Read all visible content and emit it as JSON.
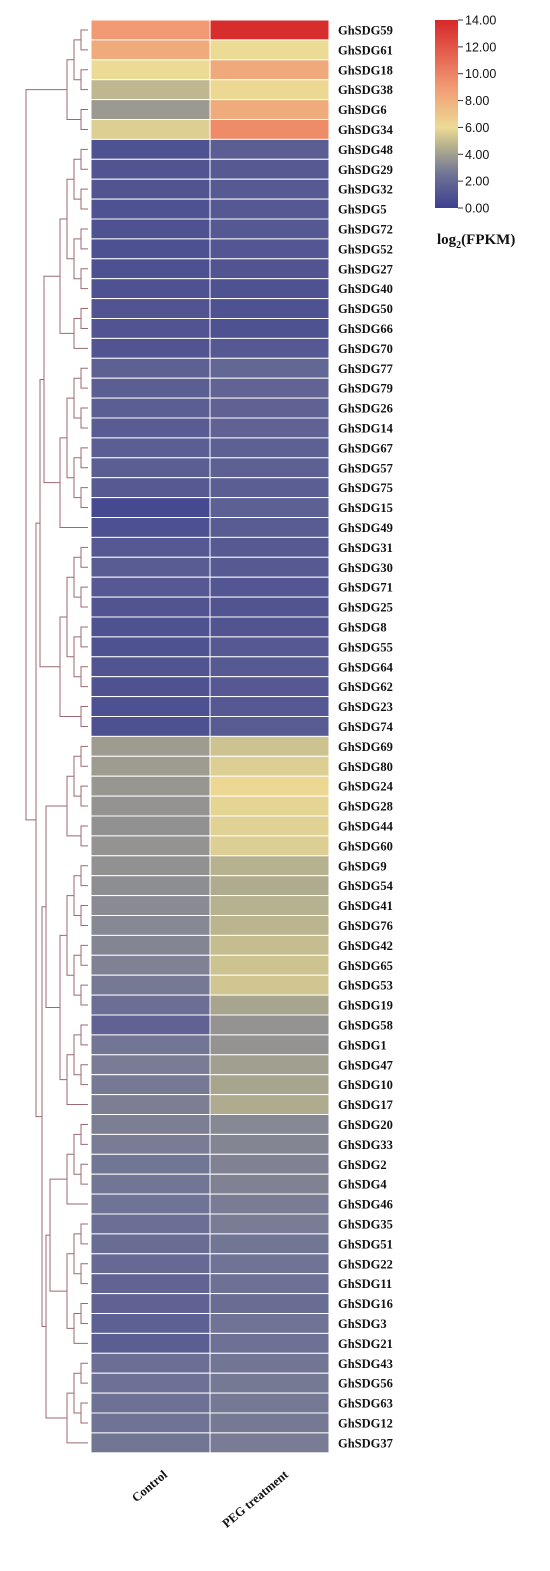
{
  "chart_data": {
    "type": "heatmap",
    "columns": [
      "Control",
      "PEG treatment"
    ],
    "rows": [
      "GhSDG59",
      "GhSDG61",
      "GhSDG18",
      "GhSDG38",
      "GhSDG6",
      "GhSDG34",
      "GhSDG48",
      "GhSDG29",
      "GhSDG32",
      "GhSDG5",
      "GhSDG72",
      "GhSDG52",
      "GhSDG27",
      "GhSDG40",
      "GhSDG50",
      "GhSDG66",
      "GhSDG70",
      "GhSDG77",
      "GhSDG79",
      "GhSDG26",
      "GhSDG14",
      "GhSDG67",
      "GhSDG57",
      "GhSDG75",
      "GhSDG15",
      "GhSDG49",
      "GhSDG31",
      "GhSDG30",
      "GhSDG71",
      "GhSDG25",
      "GhSDG8",
      "GhSDG55",
      "GhSDG64",
      "GhSDG62",
      "GhSDG23",
      "GhSDG74",
      "GhSDG69",
      "GhSDG80",
      "GhSDG24",
      "GhSDG28",
      "GhSDG44",
      "GhSDG60",
      "GhSDG9",
      "GhSDG54",
      "GhSDG41",
      "GhSDG76",
      "GhSDG42",
      "GhSDG65",
      "GhSDG53",
      "GhSDG19",
      "GhSDG58",
      "GhSDG1",
      "GhSDG47",
      "GhSDG10",
      "GhSDG17",
      "GhSDG20",
      "GhSDG33",
      "GhSDG2",
      "GhSDG4",
      "GhSDG46",
      "GhSDG35",
      "GhSDG51",
      "GhSDG22",
      "GhSDG11",
      "GhSDG16",
      "GhSDG3",
      "GhSDG21",
      "GhSDG43",
      "GhSDG56",
      "GhSDG63",
      "GhSDG12",
      "GhSDG37"
    ],
    "values": [
      [
        9.0,
        13.8
      ],
      [
        8.2,
        6.0
      ],
      [
        6.0,
        8.3
      ],
      [
        4.8,
        6.2
      ],
      [
        3.8,
        8.2
      ],
      [
        5.6,
        9.6
      ],
      [
        0.9,
        1.5
      ],
      [
        1.0,
        1.3
      ],
      [
        1.0,
        1.3
      ],
      [
        0.9,
        1.2
      ],
      [
        0.9,
        1.2
      ],
      [
        0.8,
        1.1
      ],
      [
        0.8,
        1.0
      ],
      [
        0.9,
        0.9
      ],
      [
        1.0,
        0.9
      ],
      [
        1.0,
        0.9
      ],
      [
        1.0,
        1.2
      ],
      [
        1.6,
        1.9
      ],
      [
        1.5,
        1.8
      ],
      [
        1.5,
        1.7
      ],
      [
        1.4,
        1.7
      ],
      [
        1.5,
        1.6
      ],
      [
        1.5,
        1.6
      ],
      [
        1.3,
        1.5
      ],
      [
        0.5,
        1.6
      ],
      [
        0.8,
        1.4
      ],
      [
        1.2,
        1.3
      ],
      [
        1.4,
        1.3
      ],
      [
        1.2,
        1.1
      ],
      [
        1.0,
        1.0
      ],
      [
        0.9,
        1.0
      ],
      [
        0.9,
        1.2
      ],
      [
        1.0,
        1.3
      ],
      [
        0.9,
        1.2
      ],
      [
        0.8,
        1.2
      ],
      [
        0.8,
        1.4
      ],
      [
        3.9,
        5.2
      ],
      [
        3.9,
        5.6
      ],
      [
        3.7,
        6.2
      ],
      [
        3.6,
        5.8
      ],
      [
        3.5,
        5.7
      ],
      [
        3.6,
        5.6
      ],
      [
        3.5,
        4.6
      ],
      [
        3.4,
        4.4
      ],
      [
        3.3,
        4.6
      ],
      [
        3.2,
        4.7
      ],
      [
        3.1,
        5.0
      ],
      [
        3.0,
        5.2
      ],
      [
        2.7,
        5.3
      ],
      [
        2.3,
        4.2
      ],
      [
        1.7,
        3.6
      ],
      [
        2.6,
        3.6
      ],
      [
        2.8,
        4.0
      ],
      [
        2.7,
        4.2
      ],
      [
        2.9,
        4.4
      ],
      [
        2.9,
        3.2
      ],
      [
        2.8,
        3.1
      ],
      [
        2.6,
        3.0
      ],
      [
        2.6,
        3.0
      ],
      [
        2.5,
        2.8
      ],
      [
        2.3,
        2.8
      ],
      [
        2.2,
        2.6
      ],
      [
        2.0,
        2.5
      ],
      [
        1.8,
        2.4
      ],
      [
        1.7,
        2.2
      ],
      [
        1.6,
        2.5
      ],
      [
        1.5,
        2.4
      ],
      [
        2.3,
        2.6
      ],
      [
        2.4,
        2.7
      ],
      [
        2.4,
        2.7
      ],
      [
        2.5,
        2.7
      ],
      [
        2.6,
        2.8
      ]
    ],
    "colorbar": {
      "ticks": [
        "14.00",
        "12.00",
        "10.00",
        "8.00",
        "6.00",
        "4.00",
        "2.00",
        "0.00"
      ],
      "min": 0,
      "max": 14,
      "stops": [
        {
          "value": 0,
          "color": "#3d3f8f"
        },
        {
          "value": 2.5,
          "color": "#6f7395"
        },
        {
          "value": 4.5,
          "color": "#b2ae8e"
        },
        {
          "value": 6,
          "color": "#ecdb95"
        },
        {
          "value": 9,
          "color": "#f19a73"
        },
        {
          "value": 14,
          "color": "#d7282a"
        }
      ],
      "label": "log",
      "label_sub": "2",
      "label_rest": "(FPKM)"
    }
  },
  "dendrogram_color": "#9a6a70"
}
